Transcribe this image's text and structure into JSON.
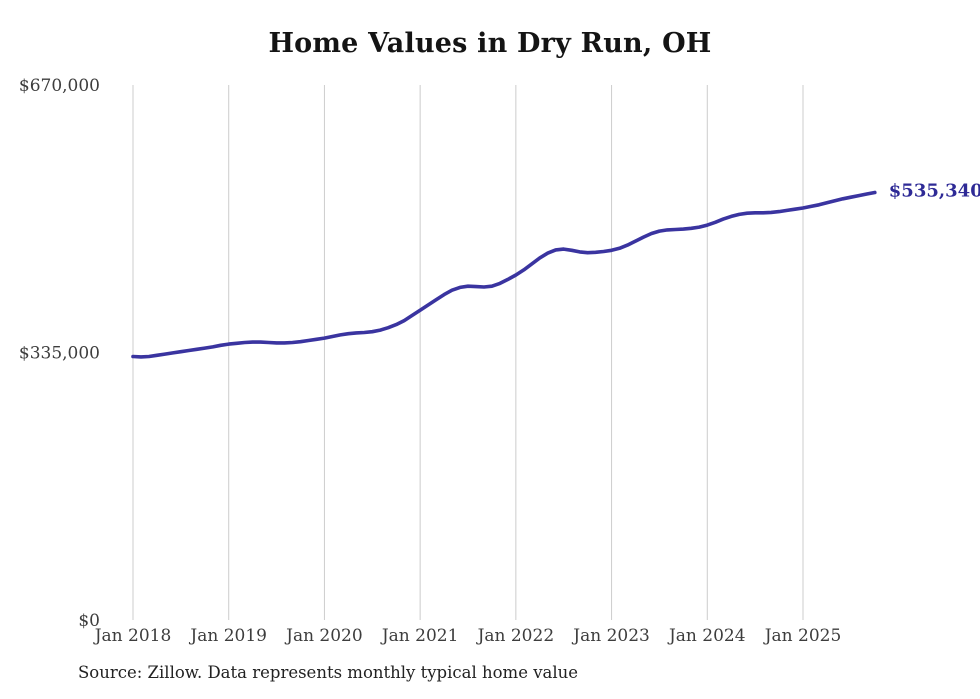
{
  "page": {
    "background": "#ffffff"
  },
  "chart_data": {
    "type": "line",
    "title": "Home Values in Dry Run, OH",
    "source": "Source: Zillow. Data represents monthly typical home value",
    "final_value_label": "$535,340",
    "xlabel": "",
    "ylabel": "",
    "ylim": [
      0,
      670000
    ],
    "grid": "vertical-only",
    "legend": "none",
    "line_color": "#3a34a0",
    "end_label_color": "#2e2a96",
    "grid_color": "#cccccc",
    "tick_color": "#3d3d3d",
    "y_ticks": [
      {
        "label": "$670,000",
        "value": 670000
      },
      {
        "label": "$335,000",
        "value": 335000
      },
      {
        "label": "$0",
        "value": 0
      }
    ],
    "x_tick_labels": [
      "Jan 2018",
      "Jan 2019",
      "Jan 2020",
      "Jan 2021",
      "Jan 2022",
      "Jan 2023",
      "Jan 2024",
      "Jan 2025"
    ],
    "x": [
      "2018-01",
      "2018-02",
      "2018-03",
      "2018-04",
      "2018-05",
      "2018-06",
      "2018-07",
      "2018-08",
      "2018-09",
      "2018-10",
      "2018-11",
      "2018-12",
      "2019-01",
      "2019-02",
      "2019-03",
      "2019-04",
      "2019-05",
      "2019-06",
      "2019-07",
      "2019-08",
      "2019-09",
      "2019-10",
      "2019-11",
      "2019-12",
      "2020-01",
      "2020-02",
      "2020-03",
      "2020-04",
      "2020-05",
      "2020-06",
      "2020-07",
      "2020-08",
      "2020-09",
      "2020-10",
      "2020-11",
      "2020-12",
      "2021-01",
      "2021-02",
      "2021-03",
      "2021-04",
      "2021-05",
      "2021-06",
      "2021-07",
      "2021-08",
      "2021-09",
      "2021-10",
      "2021-11",
      "2021-12",
      "2022-01",
      "2022-02",
      "2022-03",
      "2022-04",
      "2022-05",
      "2022-06",
      "2022-07",
      "2022-08",
      "2022-09",
      "2022-10",
      "2022-11",
      "2022-12",
      "2023-01",
      "2023-02",
      "2023-03",
      "2023-04",
      "2023-05",
      "2023-06",
      "2023-07",
      "2023-08",
      "2023-09",
      "2023-10",
      "2023-11",
      "2023-12",
      "2024-01",
      "2024-02",
      "2024-03",
      "2024-04",
      "2024-05",
      "2024-06",
      "2024-07",
      "2024-08",
      "2024-09",
      "2024-10",
      "2024-11",
      "2024-12",
      "2025-01",
      "2025-02",
      "2025-03",
      "2025-04",
      "2025-05",
      "2025-06",
      "2025-07",
      "2025-08",
      "2025-09",
      "2025-10"
    ],
    "values": [
      330000,
      329500,
      330000,
      331500,
      333000,
      334500,
      336000,
      337500,
      339000,
      340500,
      342000,
      344000,
      345500,
      346500,
      347500,
      348000,
      348000,
      347500,
      347000,
      347000,
      347500,
      348500,
      350000,
      351500,
      353000,
      355000,
      357000,
      358500,
      359500,
      360000,
      361000,
      363000,
      366000,
      370000,
      375000,
      381500,
      388000,
      394500,
      401000,
      407500,
      413000,
      416500,
      418000,
      417500,
      417000,
      418000,
      421500,
      426500,
      432000,
      438500,
      446000,
      453500,
      459500,
      463500,
      464500,
      463000,
      461000,
      460000,
      460500,
      461500,
      463000,
      465500,
      469500,
      474500,
      479500,
      484000,
      487000,
      488500,
      489000,
      489500,
      490500,
      492000,
      494500,
      498000,
      502000,
      505500,
      508000,
      509500,
      510000,
      510000,
      510500,
      511500,
      513000,
      514500,
      516000,
      518000,
      520000,
      522500,
      525000,
      527500,
      529500,
      531500,
      533500,
      535340
    ]
  }
}
